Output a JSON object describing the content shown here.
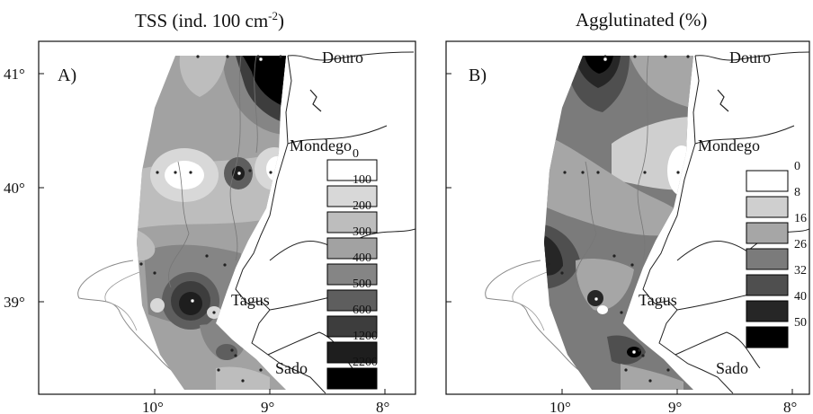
{
  "panels": [
    {
      "id": "tss",
      "title": "TSS (ind. 100 cm",
      "title_sup": "-2",
      "title_close": ")",
      "label": "A)",
      "legend": [
        {
          "label": "0",
          "color": "#ffffff"
        },
        {
          "label": "100",
          "color": "#d8d8d8"
        },
        {
          "label": "200",
          "color": "#bdbdbd"
        },
        {
          "label": "300",
          "color": "#a2a2a2"
        },
        {
          "label": "400",
          "color": "#858585"
        },
        {
          "label": "500",
          "color": "#5e5e5e"
        },
        {
          "label": "600",
          "color": "#3d3d3d"
        },
        {
          "label": "1200",
          "color": "#1e1e1e"
        },
        {
          "label": "2200",
          "color": "#000000"
        }
      ]
    },
    {
      "id": "agglutinated",
      "title": "Agglutinated (%)",
      "label": "B)",
      "legend": [
        {
          "label": "0",
          "color": "#ffffff"
        },
        {
          "label": "8",
          "color": "#cfcfcf"
        },
        {
          "label": "16",
          "color": "#a6a6a6"
        },
        {
          "label": "26",
          "color": "#7b7b7b"
        },
        {
          "label": "32",
          "color": "#4f4f4f"
        },
        {
          "label": "40",
          "color": "#262626"
        },
        {
          "label": "50",
          "color": "#000000"
        }
      ]
    }
  ],
  "place_names": {
    "douro": "Douro",
    "mondego": "Mondego",
    "tagus": "Tagus",
    "sado": "Sado"
  },
  "lat_labels": [
    "41°",
    "40°",
    "39°"
  ],
  "lon_labels": [
    "10°",
    "9°",
    "8°"
  ]
}
